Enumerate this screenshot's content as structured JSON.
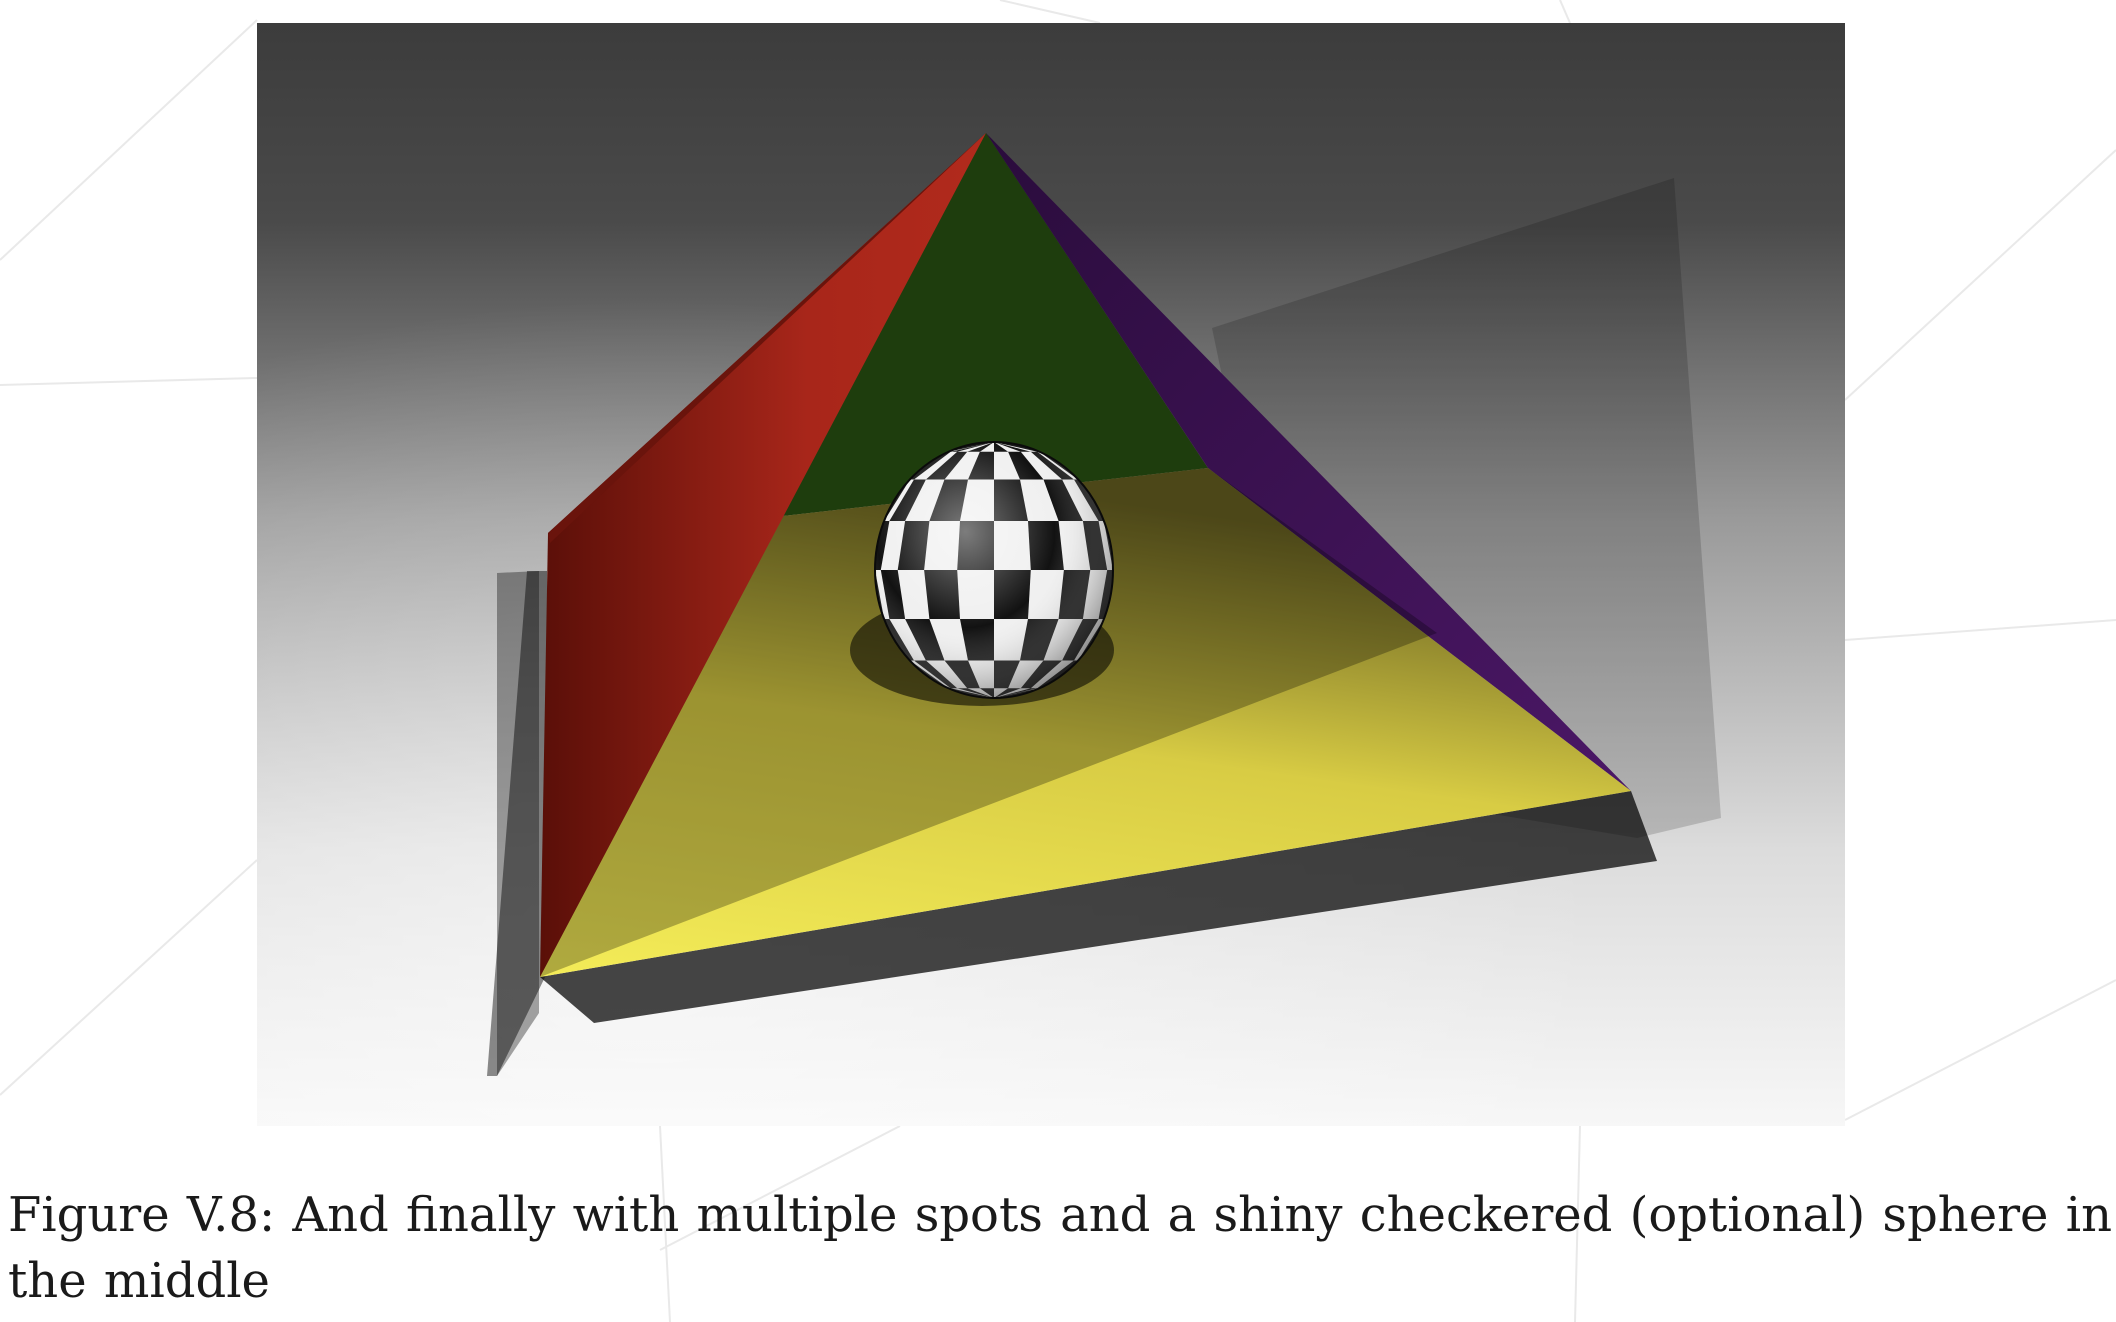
{
  "caption": {
    "text": "Figure V.8: And finally with multiple spots and a shiny checkered (optional) sphere in the middle"
  },
  "figure": {
    "scene": "render",
    "colors": {
      "red_face": "#a52419",
      "green_face": "#1e3d0d",
      "purple_face": "#3d1250",
      "yellow_face": "#ece454",
      "sphere_dark": "#111111",
      "sphere_light": "#f2f2f2"
    }
  }
}
